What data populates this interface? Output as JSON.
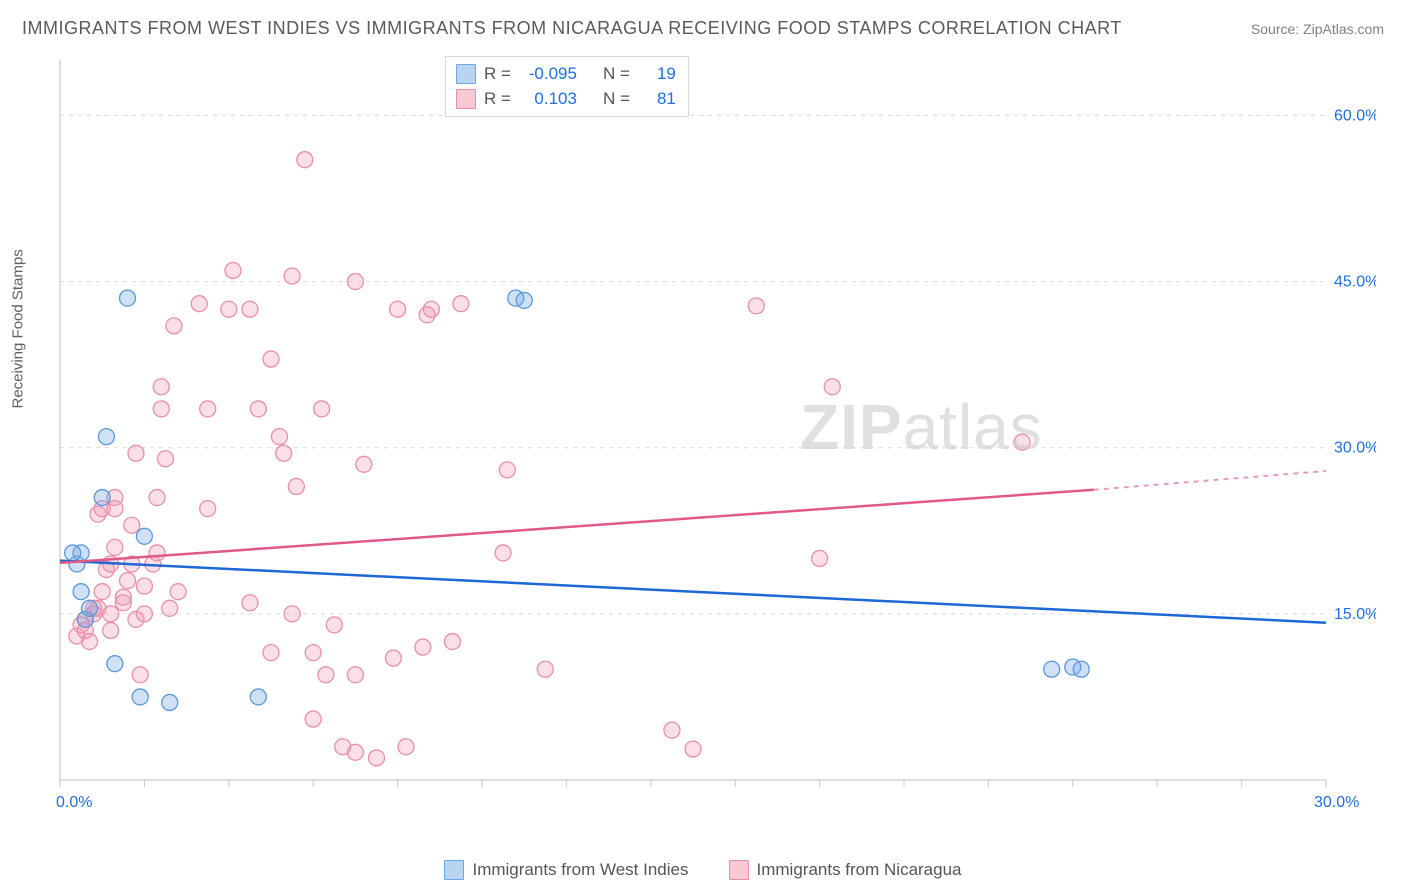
{
  "title": "IMMIGRANTS FROM WEST INDIES VS IMMIGRANTS FROM NICARAGUA RECEIVING FOOD STAMPS CORRELATION CHART",
  "source_label": "Source: ZipAtlas.com",
  "watermark_text_bold": "ZIP",
  "watermark_text_light": "atlas",
  "y_axis_label": "Receiving Food Stamps",
  "series": {
    "a": {
      "name": "Immigrants from West Indies",
      "swatch_fill": "#b8d4f0",
      "swatch_stroke": "#6aa8e8",
      "marker_fill": "rgba(120,170,230,0.35)",
      "marker_stroke": "#5a98dc",
      "line_color": "#1e68d6",
      "R_label": "R =",
      "R_value": "-0.095",
      "N_label": "N =",
      "N_value": "19"
    },
    "b": {
      "name": "Immigrants from Nicaragua",
      "swatch_fill": "#f7c9d4",
      "swatch_stroke": "#ea8fa8",
      "marker_fill": "rgba(240,150,175,0.30)",
      "marker_stroke": "#ea8fa8",
      "line_color": "#e05a86",
      "R_label": "R =",
      "R_value": "0.103",
      "N_label": "N =",
      "N_value": "81"
    }
  },
  "axes": {
    "x": {
      "min": 0,
      "max": 30,
      "start_label": "0.0%",
      "end_label": "30.0%",
      "ticks_minor": [
        0,
        2,
        4,
        6,
        8,
        10,
        12,
        14,
        16,
        18,
        20,
        22,
        24,
        26,
        28,
        30
      ]
    },
    "y": {
      "min": 0,
      "max": 65,
      "grid_labels": [
        15.0,
        30.0,
        45.0,
        60.0
      ],
      "grid_label_fmt": [
        "15.0%",
        "30.0%",
        "45.0%",
        "60.0%"
      ]
    }
  },
  "trend_lines": {
    "a": {
      "y_at_x0": 19.8,
      "y_at_x30": 14.2
    },
    "b": {
      "y_at_x0": 19.6,
      "y_at_x_solid_end": 26.2,
      "x_solid_end": 24.5,
      "y_at_x30": 27.9
    }
  },
  "points_a": [
    [
      0.4,
      19.5
    ],
    [
      0.5,
      20.5
    ],
    [
      0.5,
      17.0
    ],
    [
      0.6,
      14.5
    ],
    [
      0.7,
      15.5
    ],
    [
      1.0,
      25.5
    ],
    [
      1.1,
      31.0
    ],
    [
      1.6,
      43.5
    ],
    [
      1.3,
      10.5
    ],
    [
      1.9,
      7.5
    ],
    [
      2.0,
      22.0
    ],
    [
      2.6,
      7.0
    ],
    [
      4.7,
      7.5
    ],
    [
      10.8,
      43.5
    ],
    [
      11.0,
      43.3
    ],
    [
      23.5,
      10.0
    ],
    [
      24.0,
      10.2
    ],
    [
      24.2,
      10.0
    ],
    [
      0.3,
      20.5
    ]
  ],
  "points_b": [
    [
      0.4,
      13.0
    ],
    [
      0.5,
      14.0
    ],
    [
      0.6,
      13.5
    ],
    [
      0.6,
      14.5
    ],
    [
      0.7,
      12.5
    ],
    [
      0.8,
      15.5
    ],
    [
      0.8,
      15.0
    ],
    [
      0.9,
      15.5
    ],
    [
      0.9,
      24.0
    ],
    [
      1.0,
      24.5
    ],
    [
      1.0,
      17.0
    ],
    [
      1.1,
      19.0
    ],
    [
      1.2,
      19.5
    ],
    [
      1.2,
      15.0
    ],
    [
      1.2,
      13.5
    ],
    [
      1.3,
      24.5
    ],
    [
      1.3,
      21.0
    ],
    [
      1.3,
      25.5
    ],
    [
      1.5,
      16.5
    ],
    [
      1.5,
      16.0
    ],
    [
      1.6,
      18.0
    ],
    [
      1.7,
      23.0
    ],
    [
      1.7,
      19.5
    ],
    [
      1.8,
      29.5
    ],
    [
      1.8,
      14.5
    ],
    [
      1.9,
      9.5
    ],
    [
      2.0,
      15.0
    ],
    [
      2.0,
      17.5
    ],
    [
      2.2,
      19.5
    ],
    [
      2.3,
      20.5
    ],
    [
      2.3,
      25.5
    ],
    [
      2.4,
      33.5
    ],
    [
      2.4,
      35.5
    ],
    [
      2.5,
      29.0
    ],
    [
      2.6,
      15.5
    ],
    [
      2.7,
      41.0
    ],
    [
      2.8,
      17.0
    ],
    [
      3.3,
      43.0
    ],
    [
      3.5,
      24.5
    ],
    [
      3.5,
      33.5
    ],
    [
      4.0,
      42.5
    ],
    [
      4.1,
      46.0
    ],
    [
      4.5,
      16.0
    ],
    [
      4.5,
      42.5
    ],
    [
      4.7,
      33.5
    ],
    [
      5.0,
      38.0
    ],
    [
      5.0,
      11.5
    ],
    [
      5.2,
      31.0
    ],
    [
      5.3,
      29.5
    ],
    [
      5.5,
      15.0
    ],
    [
      5.5,
      45.5
    ],
    [
      5.6,
      26.5
    ],
    [
      5.8,
      56.0
    ],
    [
      6.0,
      11.5
    ],
    [
      6.0,
      5.5
    ],
    [
      6.2,
      33.5
    ],
    [
      6.3,
      9.5
    ],
    [
      6.5,
      14.0
    ],
    [
      6.7,
      3.0
    ],
    [
      7.0,
      2.5
    ],
    [
      7.0,
      9.5
    ],
    [
      7.0,
      45.0
    ],
    [
      7.2,
      28.5
    ],
    [
      7.5,
      2.0
    ],
    [
      7.9,
      11.0
    ],
    [
      8.0,
      42.5
    ],
    [
      8.2,
      3.0
    ],
    [
      8.6,
      12.0
    ],
    [
      8.7,
      42.0
    ],
    [
      8.8,
      42.5
    ],
    [
      9.3,
      12.5
    ],
    [
      9.5,
      43.0
    ],
    [
      10.5,
      20.5
    ],
    [
      10.6,
      28.0
    ],
    [
      11.5,
      10.0
    ],
    [
      14.5,
      4.5
    ],
    [
      16.5,
      42.8
    ],
    [
      18.0,
      20.0
    ],
    [
      18.3,
      35.5
    ],
    [
      22.8,
      30.5
    ],
    [
      15.0,
      2.8
    ]
  ],
  "marker_radius": 8,
  "axis_color": "#c9c9c9",
  "grid_dash_color": "#d9d9d9",
  "bg_color": "#ffffff"
}
